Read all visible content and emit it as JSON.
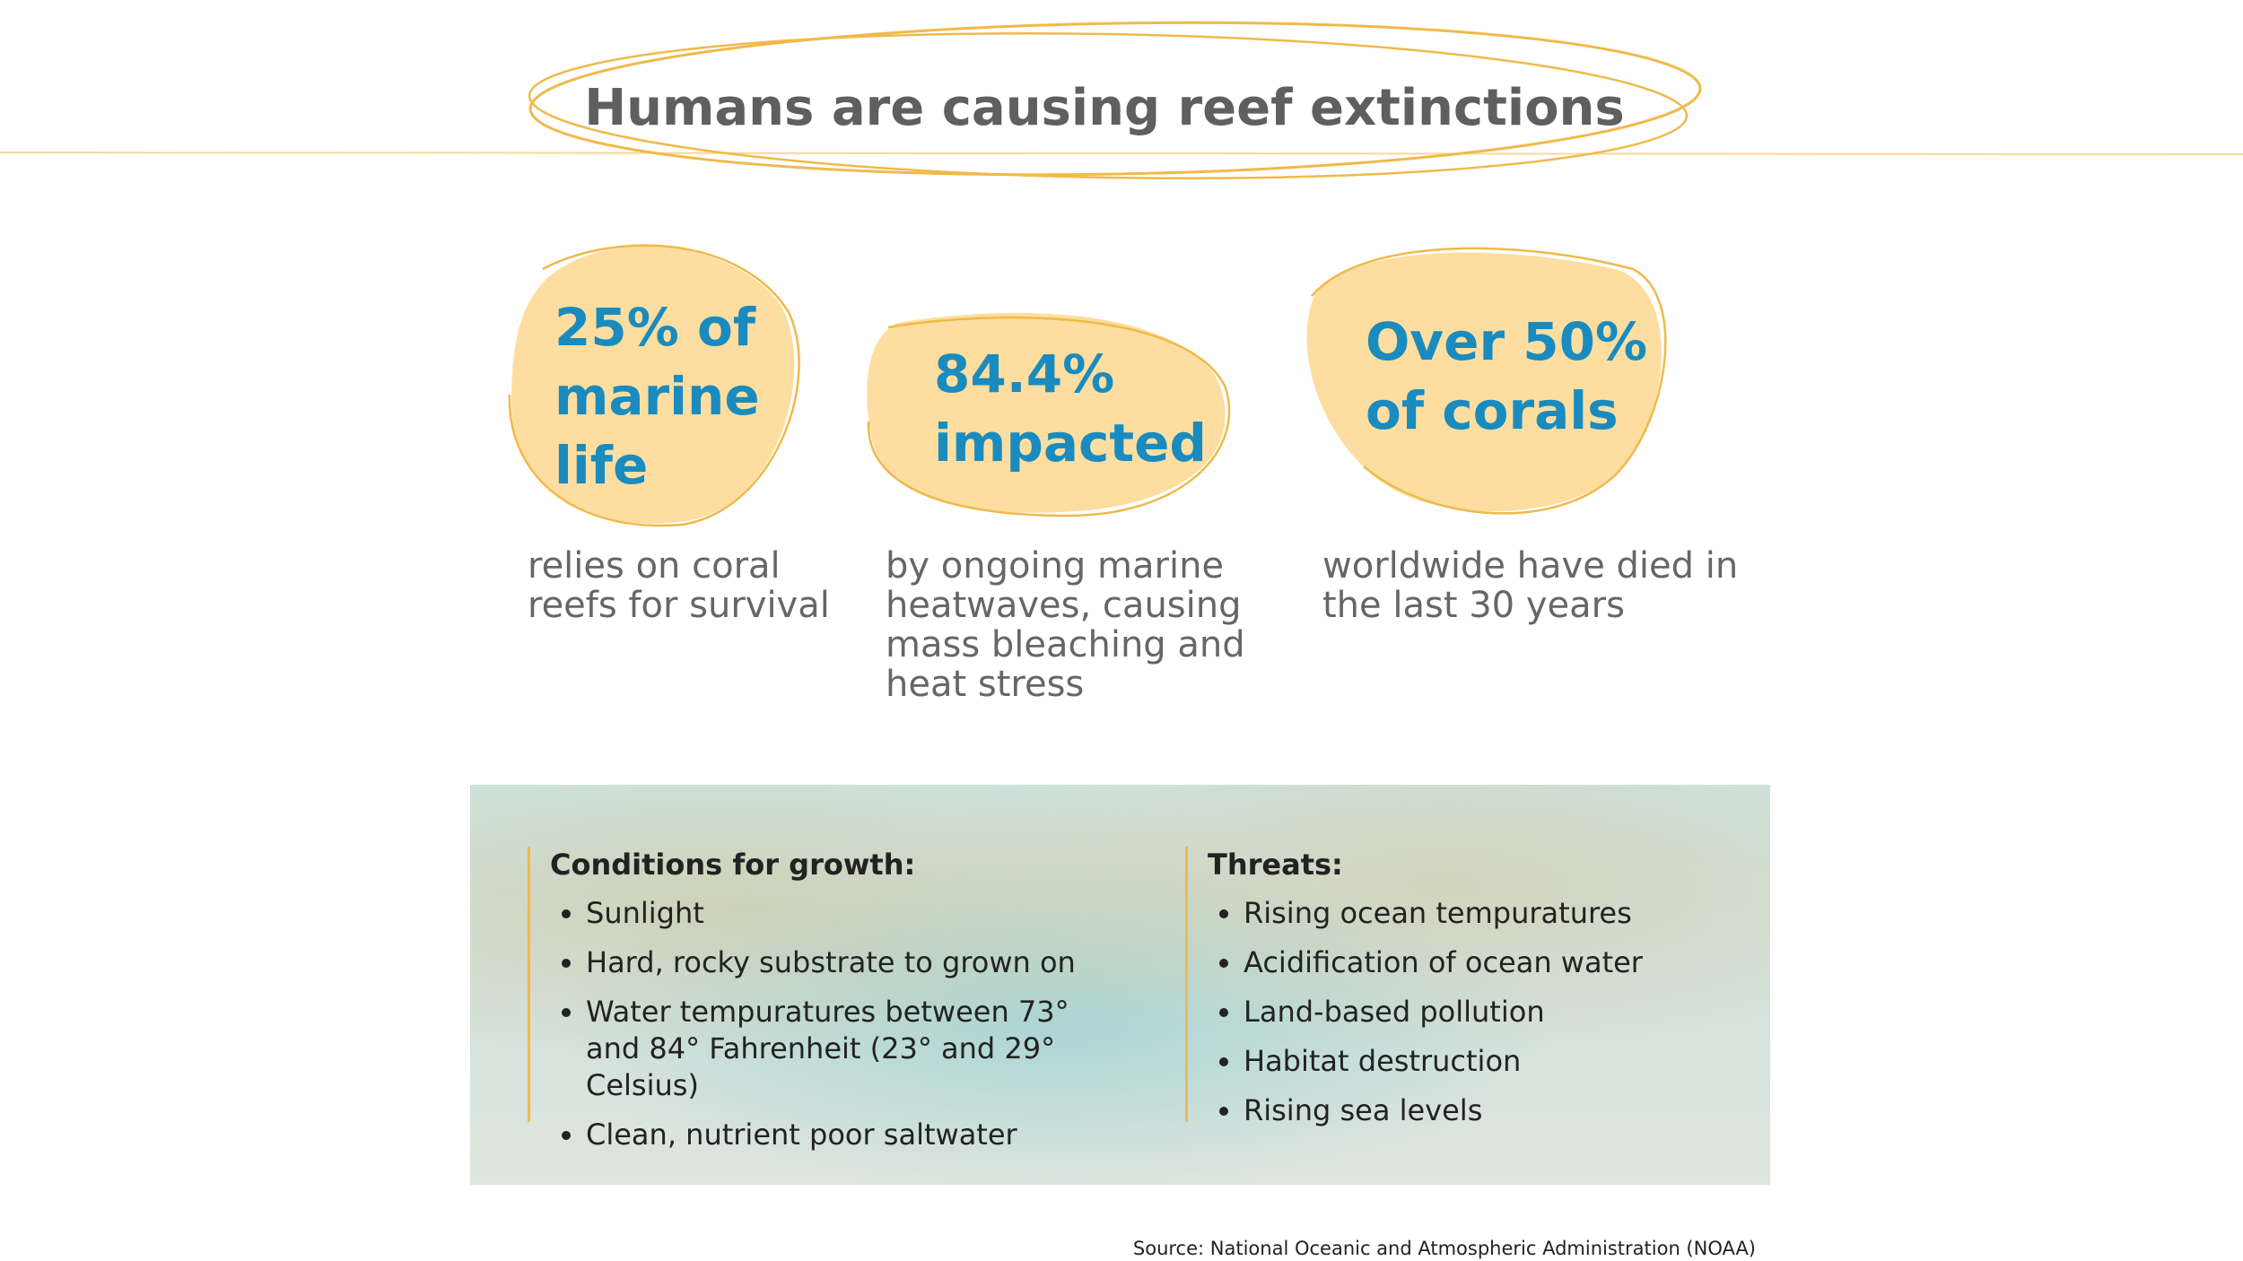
{
  "title": "Humans are causing reef extinctions",
  "stats": [
    {
      "headline": "25% of marine life",
      "description": "relies on coral reefs for survival"
    },
    {
      "headline": "84.4% impacted",
      "description": "by ongoing marine heatwaves, causing mass bleaching and heat stress"
    },
    {
      "headline": "Over 50% of corals",
      "description": "worldwide have died in the last 30 years"
    }
  ],
  "conditions": {
    "heading": "Conditions for growth:",
    "items": [
      "Sunlight",
      "Hard, rocky substrate to grown on",
      "Water tempuratures between 73° and 84° Fahrenheit (23° and 29° Celsius)",
      "Clean, nutrient poor saltwater"
    ]
  },
  "threats": {
    "heading": "Threats:",
    "items": [
      "Rising ocean tempuratures",
      "Acidification of ocean water",
      "Land-based pollution",
      "Habitat destruction",
      "Rising sea levels"
    ]
  },
  "source": "Source: National Oceanic and Atmospheric Administration (NOAA)"
}
